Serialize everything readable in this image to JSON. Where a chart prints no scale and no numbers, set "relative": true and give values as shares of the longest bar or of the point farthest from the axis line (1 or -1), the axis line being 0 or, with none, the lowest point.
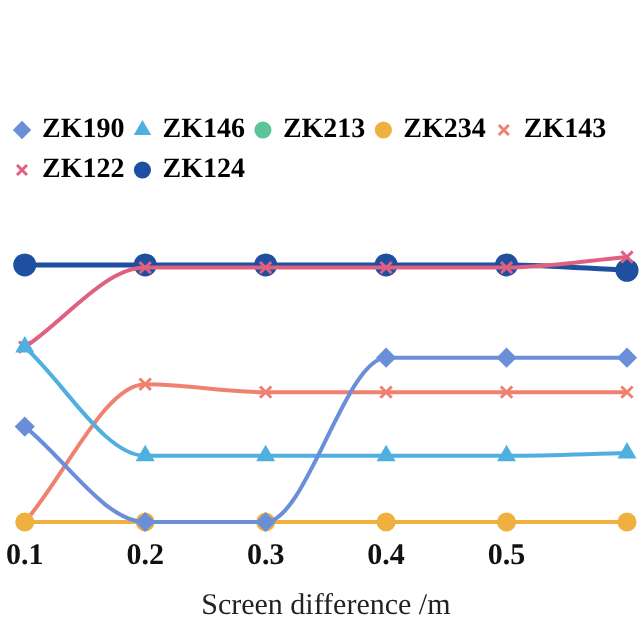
{
  "chart_data": {
    "type": "line",
    "relative": true,
    "xlabel": "Screen difference /m",
    "categories": [
      "0.1",
      "0.2",
      "0.3",
      "0.4",
      "0.5",
      null
    ],
    "legend": "top",
    "grid": false,
    "series": [
      {
        "name": "ZK190",
        "color": "#6a8fd8",
        "marker": "diamond",
        "values": [
          0.36,
          0,
          0,
          0.62,
          0.62,
          0.62
        ]
      },
      {
        "name": "ZK146",
        "color": "#4fb0e0",
        "marker": "triangle",
        "values": [
          0.66,
          0.25,
          0.25,
          0.25,
          0.25,
          0.26
        ]
      },
      {
        "name": "ZK213",
        "color": "#5cc49a",
        "marker": "circle",
        "values": [
          null,
          null,
          null,
          null,
          null,
          null
        ]
      },
      {
        "name": "ZK234",
        "color": "#f0b040",
        "marker": "circle",
        "values": [
          0,
          0,
          0,
          0,
          0,
          0
        ]
      },
      {
        "name": "ZK143",
        "color": "#f08070",
        "marker": "cross",
        "values": [
          0,
          0.52,
          0.49,
          0.49,
          0.49,
          0.49
        ]
      },
      {
        "name": "ZK122",
        "color": "#e06080",
        "marker": "cross",
        "values": [
          0.66,
          0.96,
          0.96,
          0.96,
          0.96,
          1
        ]
      },
      {
        "name": "ZK124",
        "color": "#1f4fa0",
        "marker": "circle",
        "values": [
          0.97,
          0.97,
          0.97,
          0.97,
          0.97,
          0.95
        ]
      }
    ]
  }
}
